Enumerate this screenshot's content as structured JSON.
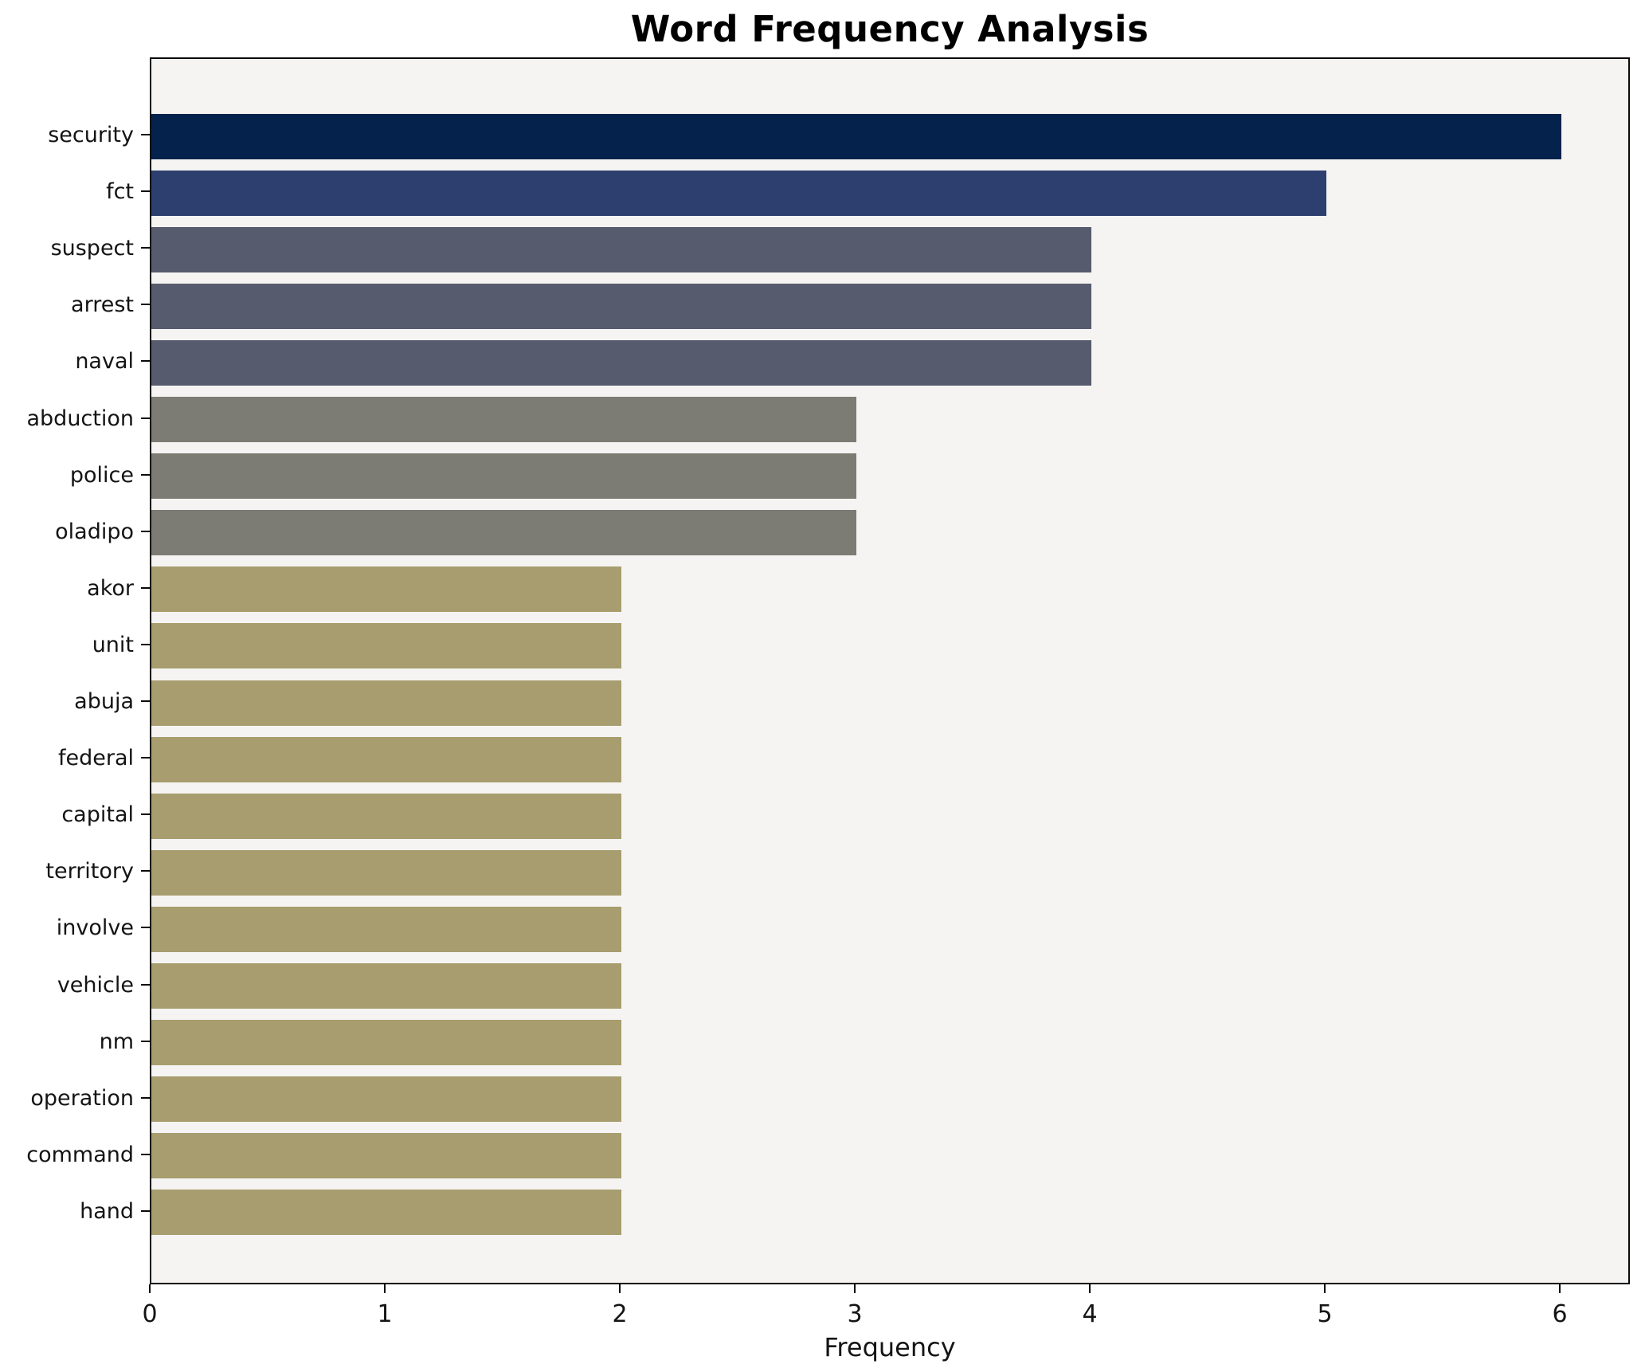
{
  "title": "Word Frequency Analysis",
  "xlabel": "Frequency",
  "chart_data": {
    "type": "bar",
    "orientation": "horizontal",
    "title": "Word Frequency Analysis",
    "xlabel": "Frequency",
    "ylabel": "",
    "categories": [
      "security",
      "fct",
      "suspect",
      "arrest",
      "naval",
      "abduction",
      "police",
      "oladipo",
      "akor",
      "unit",
      "abuja",
      "federal",
      "capital",
      "territory",
      "involve",
      "vehicle",
      "nm",
      "operation",
      "command",
      "hand"
    ],
    "values": [
      6,
      5,
      4,
      4,
      4,
      3,
      3,
      3,
      2,
      2,
      2,
      2,
      2,
      2,
      2,
      2,
      2,
      2,
      2,
      2
    ],
    "bar_colors": [
      "#04224c",
      "#2d3f6e",
      "#565c6d",
      "#565c6d",
      "#565c6d",
      "#7c7b74",
      "#7c7b74",
      "#7c7b74",
      "#a79d6e",
      "#a79d6e",
      "#a79d6e",
      "#a79d6e",
      "#a79d6e",
      "#a79d6e",
      "#a79d6e",
      "#a79d6e",
      "#a79d6e",
      "#a79d6e",
      "#a79d6e",
      "#a79d6e"
    ],
    "xticks": [
      0,
      1,
      2,
      3,
      4,
      5,
      6
    ],
    "xlim": [
      0,
      6.3
    ],
    "grid": false,
    "legend": "none",
    "plot_background": "#f5f4f2"
  }
}
